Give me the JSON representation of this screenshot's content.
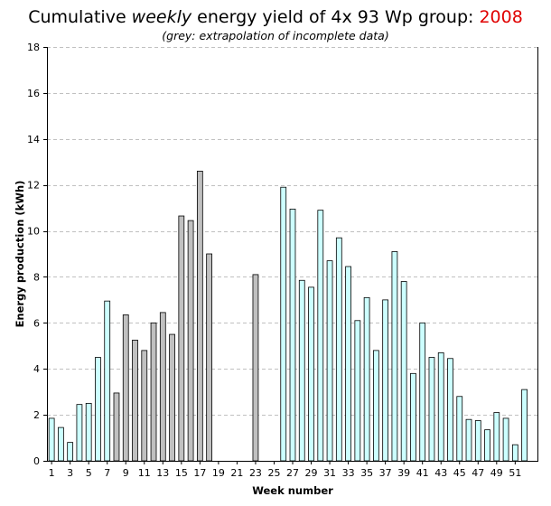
{
  "header": {
    "title_prefix": "Cumulative ",
    "title_emph": "weekly",
    "title_mid": " energy yield of 4x 93 Wp group: ",
    "title_year": "2008",
    "subtitle": "(grey: extrapolation of incomplete data)"
  },
  "colors": {
    "measured": "#ccffff",
    "extrapolated": "#c0c0c0",
    "bar_stroke": "#000000",
    "year_text": "#e00000",
    "grid": "#c0c0c0"
  },
  "chart_data": {
    "type": "bar",
    "title": "Cumulative weekly energy yield of 4x 93 Wp group: 2008",
    "subtitle": "(grey: extrapolation of incomplete data)",
    "xlabel": "Week number",
    "ylabel": "Energy production (kWh)",
    "ylim": [
      0,
      18
    ],
    "yticks": [
      0,
      2,
      4,
      6,
      8,
      10,
      12,
      14,
      16,
      18
    ],
    "xlim": [
      1,
      53
    ],
    "xticks": [
      1,
      3,
      5,
      7,
      9,
      11,
      13,
      15,
      17,
      19,
      21,
      23,
      25,
      27,
      29,
      31,
      33,
      35,
      37,
      39,
      41,
      43,
      45,
      47,
      49,
      51
    ],
    "grid": "horizontal dashed",
    "legend": "none",
    "weeks": [
      1,
      2,
      3,
      4,
      5,
      6,
      7,
      8,
      9,
      10,
      11,
      12,
      13,
      14,
      15,
      16,
      17,
      18,
      19,
      20,
      21,
      22,
      23,
      24,
      25,
      26,
      27,
      28,
      29,
      30,
      31,
      32,
      33,
      34,
      35,
      36,
      37,
      38,
      39,
      40,
      41,
      42,
      43,
      44,
      45,
      46,
      47,
      48,
      49,
      50,
      51,
      52,
      53
    ],
    "values": [
      1.85,
      1.45,
      0.8,
      2.45,
      2.5,
      4.5,
      6.95,
      2.95,
      6.35,
      5.25,
      4.8,
      6.0,
      6.45,
      5.5,
      10.65,
      10.45,
      12.6,
      9.0,
      0,
      0,
      0,
      0,
      8.1,
      0,
      0,
      11.9,
      10.95,
      7.85,
      7.55,
      10.9,
      8.7,
      9.7,
      8.45,
      6.1,
      7.1,
      4.8,
      7.0,
      9.1,
      7.8,
      3.8,
      6.0,
      4.5,
      4.7,
      4.45,
      2.8,
      1.8,
      1.75,
      1.35,
      2.1,
      1.85,
      0.7,
      3.1,
      0
    ],
    "extrapolated_weeks": [
      8,
      9,
      10,
      11,
      12,
      13,
      14,
      15,
      16,
      17,
      18,
      23
    ]
  }
}
